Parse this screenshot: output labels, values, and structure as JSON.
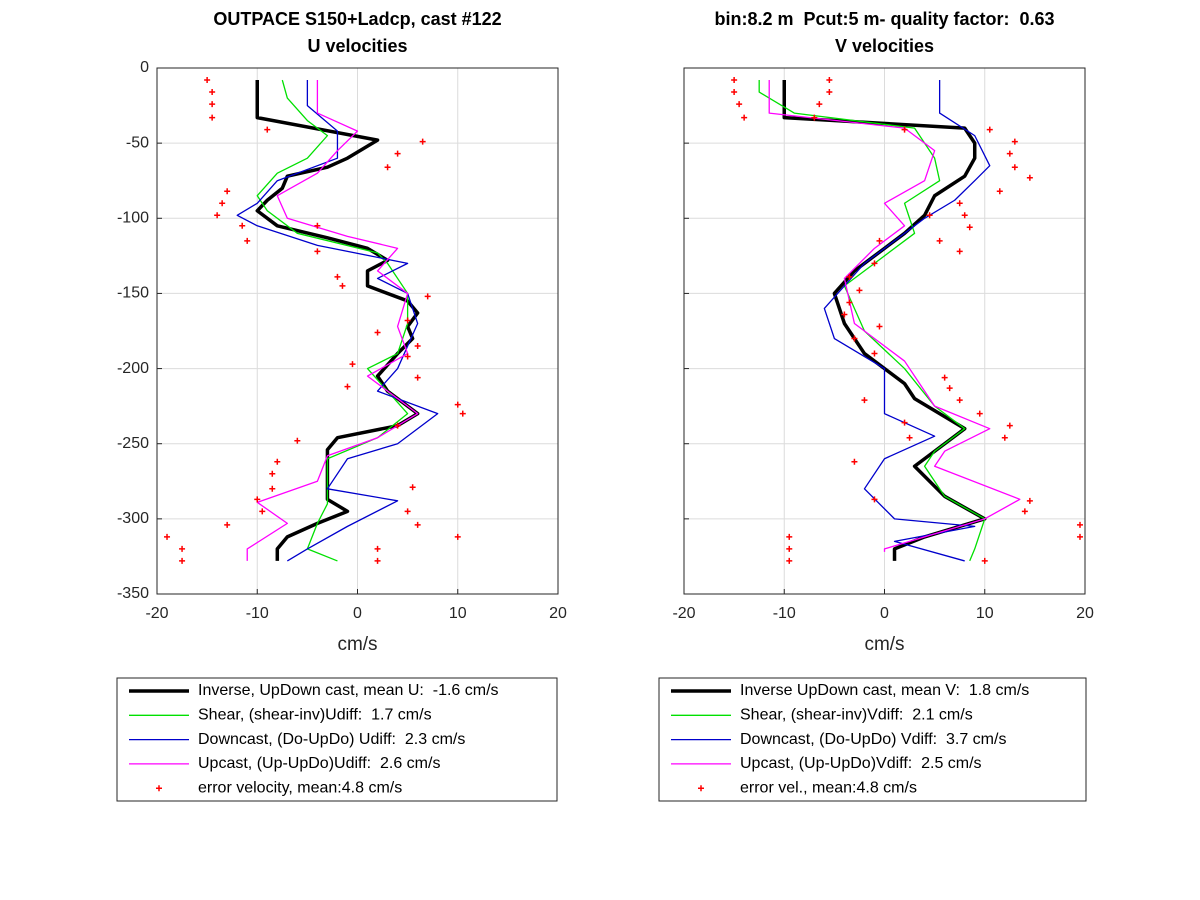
{
  "chart_data": [
    {
      "type": "line",
      "title": "OUTPACE S150+Ladcp, cast #122",
      "subtitle": "U velocities",
      "xlabel": "cm/s",
      "xlim": [
        -20,
        20
      ],
      "xticks": [
        -20,
        -10,
        0,
        10,
        20
      ],
      "ylim": [
        -350,
        0
      ],
      "yticks": [
        -350,
        -300,
        -250,
        -200,
        -150,
        -100,
        -50,
        0
      ],
      "show_ytick_labels": true,
      "grid": true,
      "legend": "south outside",
      "series": [
        {
          "name": "Inverse, UpDown cast, mean U:  -1.6 cm/s",
          "color": "#000000",
          "linewidth": 3.5,
          "x": [
            -10,
            -10,
            2,
            -1,
            -3,
            -7,
            -7.5,
            -9,
            -10,
            -8,
            -3,
            1,
            3,
            1,
            1,
            5,
            6,
            5,
            5.5,
            4,
            2,
            3,
            6,
            4,
            -2,
            -3,
            -3,
            -3,
            -1,
            -4,
            -7,
            -8,
            -8
          ],
          "y": [
            -8,
            -33,
            -48,
            -60,
            -66,
            -72,
            -80,
            -88,
            -95,
            -105,
            -113,
            -120,
            -128,
            -135,
            -145,
            -155,
            -163,
            -172,
            -180,
            -190,
            -205,
            -215,
            -230,
            -238,
            -246,
            -254,
            -270,
            -287,
            -295,
            -303,
            -312,
            -320,
            -328
          ]
        },
        {
          "name": "Shear, (shear-inv)Udiff:  1.7 cm/s",
          "color": "#00e000",
          "linewidth": 1.3,
          "x": [
            -7.5,
            -7,
            -5,
            -3,
            -5,
            -8,
            -10,
            -9,
            -6,
            2,
            3,
            5,
            5,
            4,
            1,
            5,
            2,
            -3,
            -3,
            -4,
            -5,
            -2
          ],
          "y": [
            -8,
            -20,
            -35,
            -45,
            -60,
            -70,
            -85,
            -95,
            -110,
            -123,
            -130,
            -150,
            -170,
            -190,
            -200,
            -230,
            -246,
            -260,
            -290,
            -303,
            -320,
            -328
          ]
        },
        {
          "name": "Downcast, (Do-UpDo) Udiff:  2.3 cm/s",
          "color": "#0000cc",
          "linewidth": 1.3,
          "x": [
            -5,
            -5,
            -2,
            -2,
            -8,
            -10,
            -12,
            -10,
            -4,
            5,
            2,
            5,
            6,
            4,
            2,
            8,
            4,
            -1,
            -3,
            4,
            -1,
            -5,
            -7
          ],
          "y": [
            -8,
            -25,
            -42,
            -60,
            -75,
            -90,
            -98,
            -105,
            -118,
            -130,
            -140,
            -150,
            -170,
            -200,
            -215,
            -230,
            -250,
            -260,
            -280,
            -288,
            -305,
            -320,
            -328
          ]
        },
        {
          "name": "Upcast, (Up-UpDo)Udiff:  2.6 cm/s",
          "color": "#ff00ff",
          "linewidth": 1.3,
          "x": [
            -4,
            -4,
            0,
            -2,
            -4,
            -8,
            -7,
            -1,
            4,
            2,
            5,
            4,
            5,
            1,
            6,
            2,
            -3,
            -4,
            -10,
            -7,
            -11,
            -11
          ],
          "y": [
            -8,
            -30,
            -42,
            -55,
            -70,
            -85,
            -100,
            -112,
            -120,
            -135,
            -150,
            -172,
            -190,
            -205,
            -230,
            -246,
            -258,
            -275,
            -289,
            -303,
            -320,
            -328
          ]
        },
        {
          "name": "error velocity, mean:4.8 cm/s",
          "color": "#ff0000",
          "marker": "+",
          "x": [
            -15,
            -14.5,
            -14.5,
            -14.5,
            -9,
            6.5,
            4,
            3,
            -13,
            -13.5,
            -14,
            -11.5,
            -4,
            -11,
            -4,
            -2,
            -1.5,
            7,
            5,
            2,
            6,
            5,
            -0.5,
            6,
            -1,
            10,
            10.5,
            4,
            -6,
            -8,
            -8.5,
            -8.5,
            5.5,
            -10,
            -9.5,
            5,
            -13,
            6,
            -19,
            10,
            -17.5,
            2,
            -17.5,
            2
          ],
          "y": [
            -8,
            -16,
            -24,
            -33,
            -41,
            -49,
            -57,
            -66,
            -82,
            -90,
            -98,
            -105,
            -105,
            -115,
            -122,
            -139,
            -145,
            -152,
            -168,
            -176,
            -185,
            -192,
            -197,
            -206,
            -212,
            -224,
            -230,
            -238,
            -248,
            -262,
            -270,
            -280,
            -279,
            -287,
            -295,
            -295,
            -304,
            -304,
            -312,
            -312,
            -320,
            -320,
            -328,
            -328
          ]
        }
      ]
    },
    {
      "type": "line",
      "title": "bin:8.2 m  Pcut:5 m- quality factor:  0.63",
      "subtitle": "V velocities",
      "xlabel": "cm/s",
      "xlim": [
        -20,
        20
      ],
      "xticks": [
        -20,
        -10,
        0,
        10,
        20
      ],
      "ylim": [
        -350,
        0
      ],
      "yticks": [
        -350,
        -300,
        -250,
        -200,
        -150,
        -100,
        -50,
        0
      ],
      "show_ytick_labels": false,
      "grid": true,
      "legend": "south outside",
      "series": [
        {
          "name": "Inverse UpDown cast, mean V:  1.8 cm/s",
          "color": "#000000",
          "linewidth": 3.5,
          "x": [
            -10,
            -10,
            8,
            9,
            9,
            8,
            5,
            4,
            2,
            0,
            -3,
            -5,
            -4,
            -2,
            2,
            3,
            8,
            5,
            3,
            6,
            10,
            4,
            1,
            1
          ],
          "y": [
            -8,
            -33,
            -40,
            -50,
            -60,
            -72,
            -85,
            -98,
            -110,
            -120,
            -135,
            -150,
            -170,
            -190,
            -210,
            -220,
            -240,
            -255,
            -265,
            -285,
            -300,
            -312,
            -320,
            -328
          ]
        },
        {
          "name": "Shear, (shear-inv)Vdiff:  2.1 cm/s",
          "color": "#00e000",
          "linewidth": 1.3,
          "x": [
            -12.5,
            -12.5,
            -9,
            3,
            5,
            5.5,
            2,
            3,
            0,
            -4,
            -2,
            2,
            5,
            8,
            5,
            4,
            6,
            10,
            9,
            8.5
          ],
          "y": [
            -8,
            -16,
            -30,
            -40,
            -60,
            -75,
            -90,
            -110,
            -125,
            -145,
            -175,
            -200,
            -225,
            -240,
            -255,
            -265,
            -285,
            -300,
            -320,
            -328
          ]
        },
        {
          "name": "Downcast, (Do-UpDo) Vdiff:  3.7 cm/s",
          "color": "#0000cc",
          "linewidth": 1.3,
          "x": [
            5.5,
            5.5,
            9,
            10.5,
            9,
            7,
            4,
            1,
            -2,
            -6,
            -5,
            0,
            0,
            5,
            0,
            -2,
            1,
            9,
            1,
            8
          ],
          "y": [
            -8,
            -30,
            -45,
            -65,
            -75,
            -88,
            -100,
            -115,
            -130,
            -160,
            -180,
            -200,
            -230,
            -245,
            -260,
            -280,
            -300,
            -305,
            -315,
            -328
          ]
        },
        {
          "name": "Upcast, (Up-UpDo)Vdiff:  2.5 cm/s",
          "color": "#ff00ff",
          "linewidth": 1.3,
          "x": [
            -11.5,
            -11.5,
            2,
            5,
            4,
            0,
            2,
            -1,
            -4,
            -3,
            2,
            5,
            10.5,
            6,
            5,
            13.5,
            10,
            5,
            0,
            0
          ],
          "y": [
            -8,
            -30,
            -40,
            -55,
            -75,
            -90,
            -105,
            -120,
            -140,
            -170,
            -195,
            -225,
            -240,
            -255,
            -265,
            -287,
            -300,
            -310,
            -320,
            -322
          ]
        },
        {
          "name": "error vel., mean:4.8 cm/s",
          "color": "#ff0000",
          "marker": "+",
          "x": [
            -15,
            -15,
            -14.5,
            -14,
            -5.5,
            -5.5,
            -6.5,
            -7,
            2,
            10.5,
            13,
            12.5,
            13,
            14.5,
            11.5,
            7.5,
            8,
            4.5,
            8.5,
            5.5,
            -0.5,
            7.5,
            -1,
            -3.5,
            -2.5,
            -3.5,
            -4,
            -0.5,
            -3,
            -1,
            6,
            6.5,
            -2,
            7.5,
            9.5,
            2,
            12.5,
            12,
            2.5,
            -3,
            -1,
            14.5,
            14,
            19.5,
            19.5,
            -9.5,
            -9.5,
            -9.5,
            10
          ],
          "y": [
            -8,
            -16,
            -24,
            -33,
            -8,
            -16,
            -24,
            -33,
            -41,
            -41,
            -49,
            -57,
            -66,
            -73,
            -82,
            -90,
            -98,
            -98,
            -106,
            -115,
            -115,
            -122,
            -130,
            -139,
            -148,
            -156,
            -164,
            -172,
            -180,
            -190,
            -206,
            -213,
            -221,
            -221,
            -230,
            -236,
            -238,
            -246,
            -246,
            -262,
            -287,
            -288,
            -295,
            -304,
            -312,
            -312,
            -320,
            -328,
            -328
          ]
        }
      ]
    }
  ]
}
